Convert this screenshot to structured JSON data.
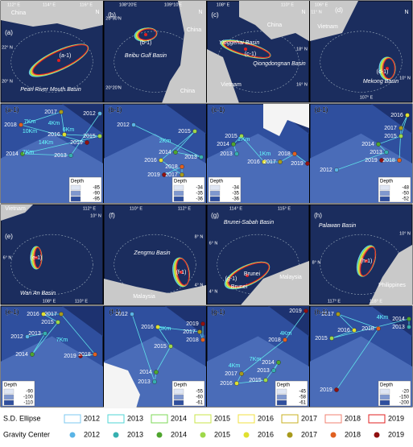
{
  "panels": [
    {
      "label": "(a)",
      "texts": [
        "112° E",
        "114° E",
        "116° E",
        "China",
        "N",
        "22° N",
        "20° N",
        "(a-1)",
        "Pearl River Mouth Basin"
      ]
    },
    {
      "label": "(b)",
      "texts": [
        "108°20'E",
        "109°10'E",
        "20°50'N",
        "20°20'N",
        "(b-1)",
        "China",
        "Beibu Gulf Basin",
        "China",
        "N"
      ]
    },
    {
      "label": "(c)",
      "texts": [
        "108° E",
        "110° E",
        "China",
        "Yinggehai Basin",
        "(c-1)",
        "Qiongdongnan Basin",
        "Vietnam",
        "18° N",
        "16° N",
        "N"
      ]
    },
    {
      "label": "(d)",
      "texts": [
        "Vietnam",
        "106° E",
        "11° N",
        "(d-1)",
        "Mekong Basin",
        "107° E",
        "10° N",
        "N"
      ]
    },
    {
      "label": "(a-1)",
      "texts": [
        "2017",
        "2012",
        "2018",
        "7Km",
        "4Km",
        "10Km",
        "6Km",
        "2016",
        "2015",
        "14Km",
        "2019",
        "7Km",
        "2014",
        "2013"
      ],
      "depth": {
        "title": "Depth",
        "values": [
          -85,
          -90,
          -95
        ]
      }
    },
    {
      "label": "(b-1)",
      "texts": [
        "2012",
        "2015",
        "2Km",
        "2014",
        "2016",
        "2013",
        "2018",
        "2017",
        "2019"
      ],
      "depth": {
        "title": "Depth",
        "values": [
          -34,
          -35,
          -36
        ]
      }
    },
    {
      "label": "(c-1)",
      "texts": [
        "2015",
        "2014",
        "2Km",
        "2013",
        "1Km",
        "2016",
        "2017",
        "2018",
        "2019"
      ],
      "depth": {
        "title": "Depth",
        "values": [
          -34,
          -35,
          -36
        ]
      }
    },
    {
      "label": "(d-1)",
      "texts": [
        "2016",
        "2017",
        "2015",
        "2014",
        "2013",
        "2019",
        "2018",
        "2012"
      ],
      "depth": {
        "title": "Depth",
        "values": [
          -48,
          -50,
          -52
        ]
      }
    },
    {
      "label": "(e)",
      "texts": [
        "Vietnam",
        "112° E",
        "10° N",
        "6° N",
        "(e-1)",
        "Wan An Basin",
        "108° E",
        "110° E"
      ]
    },
    {
      "label": "(f)",
      "texts": [
        "110° E",
        "112° E",
        "8° N",
        "Zengmu Basin",
        "(f-1)",
        "4° N",
        "Malaysia"
      ]
    },
    {
      "label": "(g)",
      "texts": [
        "Brunei-Sabah Basin",
        "114° E",
        "115° E",
        "6° N",
        "(g-1)",
        "Brunei",
        "Brunei",
        "Malaysia",
        "4° N"
      ]
    },
    {
      "label": "(h)",
      "texts": [
        "Palawan Basin",
        "10° N",
        "(h-1)",
        "8° N",
        "Philippines",
        "117° E",
        "118° E"
      ]
    },
    {
      "label": "(e-1)",
      "texts": [
        "2016",
        "2017",
        "2015",
        "2013",
        "2012",
        "7Km",
        "2014",
        "2019",
        "2018"
      ],
      "depth": {
        "title": "Depth",
        "values": [
          -90,
          -100,
          -110
        ]
      }
    },
    {
      "label": "(f-1)",
      "texts": [
        "2012",
        "2016",
        "5Km",
        "2019",
        "2017",
        "2018",
        "2015",
        "2014",
        "2013"
      ],
      "depth": {
        "title": "Depth",
        "values": [
          -55,
          -60,
          -61
        ]
      }
    },
    {
      "label": "(g-1)",
      "texts": [
        "2019",
        "4Km",
        "2018",
        "7Km",
        "2014",
        "4Km",
        "2013",
        "2017",
        "2016",
        "2015"
      ],
      "depth": {
        "title": "Depth",
        "values": [
          -45,
          -58,
          -61
        ]
      }
    },
    {
      "label": "(h-1)",
      "texts": [
        "2017",
        "4Km",
        "2014",
        "2013",
        "2018",
        "2016",
        "2015",
        "2019"
      ],
      "depth": {
        "title": "Depth",
        "values": [
          -20,
          -150,
          -200
        ]
      }
    }
  ],
  "legend": {
    "ellipse_title": "S.D. Ellipse",
    "center_title": "Gravity Center",
    "years": [
      "2012",
      "2013",
      "2014",
      "2015",
      "2016",
      "2017",
      "2018",
      "2019"
    ],
    "ellipse_colors": [
      "#7cc8f0",
      "#4fd6d6",
      "#7ed957",
      "#c8e64a",
      "#f0e040",
      "#c8b020",
      "#f08070",
      "#e02020"
    ],
    "center_colors": [
      "#5ab4e6",
      "#36b0b0",
      "#4fa52e",
      "#9ed84a",
      "#e0e030",
      "#a89a1c",
      "#e06020",
      "#901010"
    ]
  }
}
